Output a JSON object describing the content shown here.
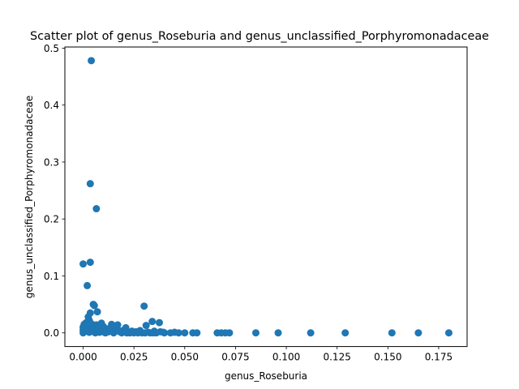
{
  "chart_data": {
    "type": "scatter",
    "title": "Scatter plot of genus_Roseburia and genus_unclassified_Porphyromonadaceae",
    "xlabel": "genus_Roseburia",
    "ylabel": "genus_unclassified_Porphyromonadaceae",
    "xlim": [
      -0.009,
      0.189
    ],
    "ylim": [
      -0.024,
      0.502
    ],
    "xticks": [
      0.0,
      0.025,
      0.05,
      0.075,
      0.1,
      0.125,
      0.15,
      0.175
    ],
    "xtick_labels": [
      "0.000",
      "0.025",
      "0.050",
      "0.075",
      "0.100",
      "0.125",
      "0.150",
      "0.175"
    ],
    "yticks": [
      0.0,
      0.1,
      0.2,
      0.3,
      0.4,
      0.5
    ],
    "ytick_labels": [
      "0.0",
      "0.1",
      "0.2",
      "0.3",
      "0.4",
      "0.5"
    ],
    "grid": false,
    "marker_color": "#1f77b4",
    "points": [
      [
        0.004,
        0.478
      ],
      [
        0.0035,
        0.262
      ],
      [
        0.0065,
        0.218
      ],
      [
        0.0,
        0.121
      ],
      [
        0.0035,
        0.124
      ],
      [
        0.002,
        0.083
      ],
      [
        0.005,
        0.05
      ],
      [
        0.0055,
        0.048
      ],
      [
        0.03,
        0.047
      ],
      [
        0.0035,
        0.035
      ],
      [
        0.007,
        0.037
      ],
      [
        0.0025,
        0.028
      ],
      [
        0.034,
        0.02
      ],
      [
        0.0375,
        0.018
      ],
      [
        0.003,
        0.022
      ],
      [
        0.0015,
        0.018
      ],
      [
        0.0005,
        0.015
      ],
      [
        0.0,
        0.01
      ],
      [
        0.0,
        0.005
      ],
      [
        0.0,
        0.0
      ],
      [
        0.0005,
        0.002
      ],
      [
        0.001,
        0.008
      ],
      [
        0.0015,
        0.004
      ],
      [
        0.002,
        0.012
      ],
      [
        0.0025,
        0.006
      ],
      [
        0.003,
        0.001
      ],
      [
        0.004,
        0.016
      ],
      [
        0.0045,
        0.003
      ],
      [
        0.005,
        0.009
      ],
      [
        0.006,
        0.0
      ],
      [
        0.0065,
        0.014
      ],
      [
        0.007,
        0.005
      ],
      [
        0.008,
        0.001
      ],
      [
        0.009,
        0.017
      ],
      [
        0.0095,
        0.004
      ],
      [
        0.01,
        0.011
      ],
      [
        0.011,
        0.0
      ],
      [
        0.012,
        0.006
      ],
      [
        0.0125,
        0.002
      ],
      [
        0.014,
        0.015
      ],
      [
        0.015,
        0.0
      ],
      [
        0.016,
        0.007
      ],
      [
        0.017,
        0.014
      ],
      [
        0.018,
        0.002
      ],
      [
        0.019,
        0.0
      ],
      [
        0.02,
        0.005
      ],
      [
        0.021,
        0.009
      ],
      [
        0.022,
        0.001
      ],
      [
        0.023,
        0.0
      ],
      [
        0.024,
        0.003
      ],
      [
        0.025,
        0.0
      ],
      [
        0.026,
        0.002
      ],
      [
        0.027,
        0.0
      ],
      [
        0.028,
        0.004
      ],
      [
        0.029,
        0.0
      ],
      [
        0.031,
        0.013
      ],
      [
        0.032,
        0.001
      ],
      [
        0.033,
        0.0
      ],
      [
        0.035,
        0.003
      ],
      [
        0.036,
        0.0
      ],
      [
        0.038,
        0.002
      ],
      [
        0.04,
        0.0
      ],
      [
        0.043,
        0.0
      ],
      [
        0.045,
        0.001
      ],
      [
        0.047,
        0.0
      ],
      [
        0.05,
        0.0
      ],
      [
        0.054,
        0.0
      ],
      [
        0.056,
        0.0
      ],
      [
        0.066,
        0.0
      ],
      [
        0.068,
        0.0
      ],
      [
        0.07,
        0.0
      ],
      [
        0.072,
        0.0
      ],
      [
        0.085,
        0.0
      ],
      [
        0.096,
        0.0
      ],
      [
        0.112,
        0.0
      ],
      [
        0.129,
        0.0
      ],
      [
        0.152,
        0.0
      ],
      [
        0.165,
        0.0
      ],
      [
        0.18,
        0.0
      ],
      [
        0.0085,
        0.003
      ],
      [
        0.013,
        0.008
      ],
      [
        0.0175,
        0.004
      ],
      [
        0.0215,
        0.0
      ],
      [
        0.0305,
        0.0
      ],
      [
        0.0345,
        0.0
      ],
      [
        0.0395,
        0.001
      ],
      [
        0.0105,
        0.001
      ],
      [
        0.0155,
        0.012
      ],
      [
        0.0075,
        0.008
      ]
    ]
  }
}
